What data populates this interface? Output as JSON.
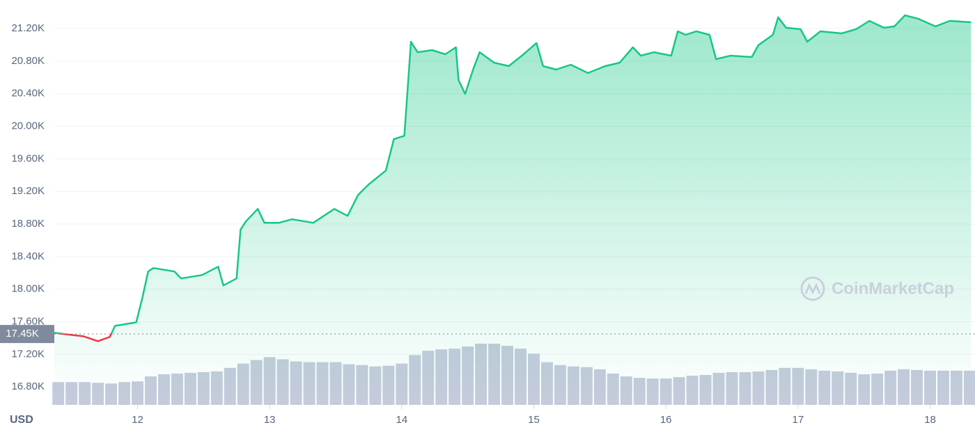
{
  "chart_data": {
    "type": "line",
    "currency": "USD",
    "watermark": "CoinMarketCap",
    "x": [
      11.37,
      11.49,
      11.59,
      11.7,
      11.79,
      11.83,
      11.99,
      12.04,
      12.08,
      12.12,
      12.28,
      12.33,
      12.49,
      12.61,
      12.65,
      12.75,
      12.78,
      12.82,
      12.91,
      12.96,
      13.07,
      13.17,
      13.33,
      13.49,
      13.59,
      13.67,
      13.75,
      13.88,
      13.94,
      14.02,
      14.07,
      14.12,
      14.23,
      14.33,
      14.41,
      14.43,
      14.48,
      14.54,
      14.59,
      14.7,
      14.81,
      14.91,
      15.02,
      15.07,
      15.17,
      15.28,
      15.41,
      15.54,
      15.65,
      15.75,
      15.81,
      15.91,
      16.04,
      16.09,
      16.15,
      16.23,
      16.33,
      16.38,
      16.49,
      16.65,
      16.7,
      16.81,
      16.85,
      16.91,
      17.02,
      17.07,
      17.17,
      17.33,
      17.44,
      17.54,
      17.65,
      17.73,
      17.81,
      17.91,
      18.04,
      18.15,
      18.31
    ],
    "values": [
      17465,
      17440,
      17422,
      17362,
      17414,
      17550,
      17593,
      17918,
      18217,
      18260,
      18217,
      18132,
      18174,
      18277,
      18046,
      18132,
      18730,
      18832,
      18986,
      18815,
      18815,
      18858,
      18815,
      18986,
      18900,
      19157,
      19286,
      19456,
      19841,
      19883,
      21038,
      20909,
      20935,
      20884,
      20969,
      20568,
      20397,
      20696,
      20909,
      20781,
      20739,
      20867,
      21021,
      20739,
      20696,
      20756,
      20653,
      20739,
      20781,
      20969,
      20867,
      20909,
      20867,
      21166,
      21123,
      21166,
      21123,
      20824,
      20867,
      20850,
      20995,
      21123,
      21337,
      21209,
      21192,
      21038,
      21166,
      21140,
      21192,
      21294,
      21209,
      21226,
      21362,
      21320,
      21226,
      21294,
      21277
    ],
    "color": "#16c784",
    "below_color": "#ea3943",
    "reference": {
      "value": 17450,
      "label": "17.45K"
    },
    "xlim": [
      11.37,
      18.34
    ],
    "xticks": [
      12,
      13,
      14,
      15,
      16,
      17,
      18
    ],
    "ylim": [
      16580,
      21550
    ],
    "yticks": [
      {
        "value": 16800,
        "label": "16.80K"
      },
      {
        "value": 17200,
        "label": "17.20K"
      },
      {
        "value": 17600,
        "label": "17.60K"
      },
      {
        "value": 18000,
        "label": "18.00K"
      },
      {
        "value": 18400,
        "label": "18.40K"
      },
      {
        "value": 18800,
        "label": "18.80K"
      },
      {
        "value": 19200,
        "label": "19.20K"
      },
      {
        "value": 19600,
        "label": "19.60K"
      },
      {
        "value": 20000,
        "label": "20.00K"
      },
      {
        "value": 20400,
        "label": "20.40K"
      },
      {
        "value": 20800,
        "label": "20.80K"
      },
      {
        "value": 21200,
        "label": "21.20K"
      }
    ],
    "grid": true,
    "volume": {
      "color": "#c5cbdc",
      "x": [
        11.4,
        11.5,
        11.6,
        11.7,
        11.8,
        11.9,
        12.0,
        12.1,
        12.2,
        12.3,
        12.4,
        12.5,
        12.6,
        12.7,
        12.8,
        12.9,
        13.0,
        13.1,
        13.2,
        13.3,
        13.4,
        13.5,
        13.6,
        13.7,
        13.8,
        13.9,
        14.0,
        14.1,
        14.2,
        14.3,
        14.4,
        14.5,
        14.6,
        14.7,
        14.8,
        14.9,
        15.0,
        15.1,
        15.2,
        15.3,
        15.4,
        15.5,
        15.6,
        15.7,
        15.8,
        15.9,
        16.0,
        16.1,
        16.2,
        16.3,
        16.4,
        16.5,
        16.6,
        16.7,
        16.8,
        16.9,
        17.0,
        17.1,
        17.2,
        17.3,
        17.4,
        17.5,
        17.6,
        17.7,
        17.8,
        17.9,
        18.0,
        18.1,
        18.2,
        18.3
      ],
      "values": [
        32,
        32,
        32,
        31,
        30,
        32,
        33,
        40,
        43,
        44,
        45,
        46,
        47,
        52,
        58,
        63,
        67,
        64,
        61,
        60,
        60,
        60,
        57,
        56,
        54,
        55,
        58,
        70,
        76,
        78,
        79,
        82,
        86,
        86,
        83,
        79,
        72,
        60,
        56,
        54,
        53,
        50,
        44,
        40,
        38,
        37,
        37,
        39,
        41,
        42,
        45,
        46,
        46,
        47,
        49,
        52,
        52,
        50,
        48,
        47,
        45,
        43,
        44,
        48,
        50,
        49,
        48,
        48,
        48,
        48
      ]
    }
  }
}
